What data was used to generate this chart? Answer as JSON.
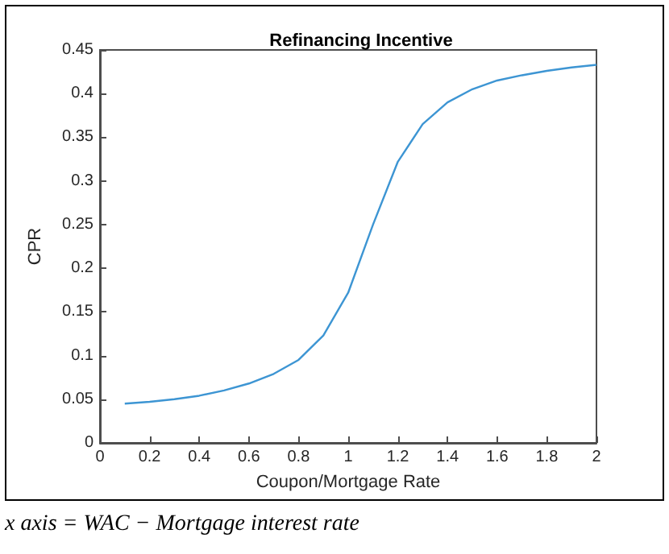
{
  "chart_data": {
    "type": "line",
    "title": "Refinancing Incentive",
    "xlabel": "Coupon/Mortgage Rate",
    "ylabel": "CPR",
    "x": [
      0.1,
      0.2,
      0.3,
      0.4,
      0.5,
      0.6,
      0.7,
      0.8,
      0.9,
      1.0,
      1.1,
      1.2,
      1.3,
      1.4,
      1.5,
      1.6,
      1.7,
      1.8,
      1.9,
      2.0
    ],
    "series": [
      {
        "color": "#3d95d3",
        "values": [
          0.045,
          0.047,
          0.05,
          0.054,
          0.06,
          0.068,
          0.079,
          0.095,
          0.123,
          0.172,
          0.25,
          0.322,
          0.365,
          0.39,
          0.405,
          0.415,
          0.421,
          0.426,
          0.43,
          0.433
        ]
      }
    ],
    "xlim": [
      0,
      2
    ],
    "xticks": [
      0,
      0.2,
      0.4,
      0.6,
      0.8,
      1,
      1.2,
      1.4,
      1.6,
      1.8,
      2
    ],
    "ylim": [
      0,
      0.45
    ],
    "yticks": [
      0,
      0.05,
      0.1,
      0.15,
      0.2,
      0.25,
      0.3,
      0.35,
      0.4,
      0.45
    ],
    "annotations": [
      "x axis = WAC − Mortgage interest rate"
    ],
    "grid": false,
    "marker": "none",
    "line_style": "solid"
  }
}
